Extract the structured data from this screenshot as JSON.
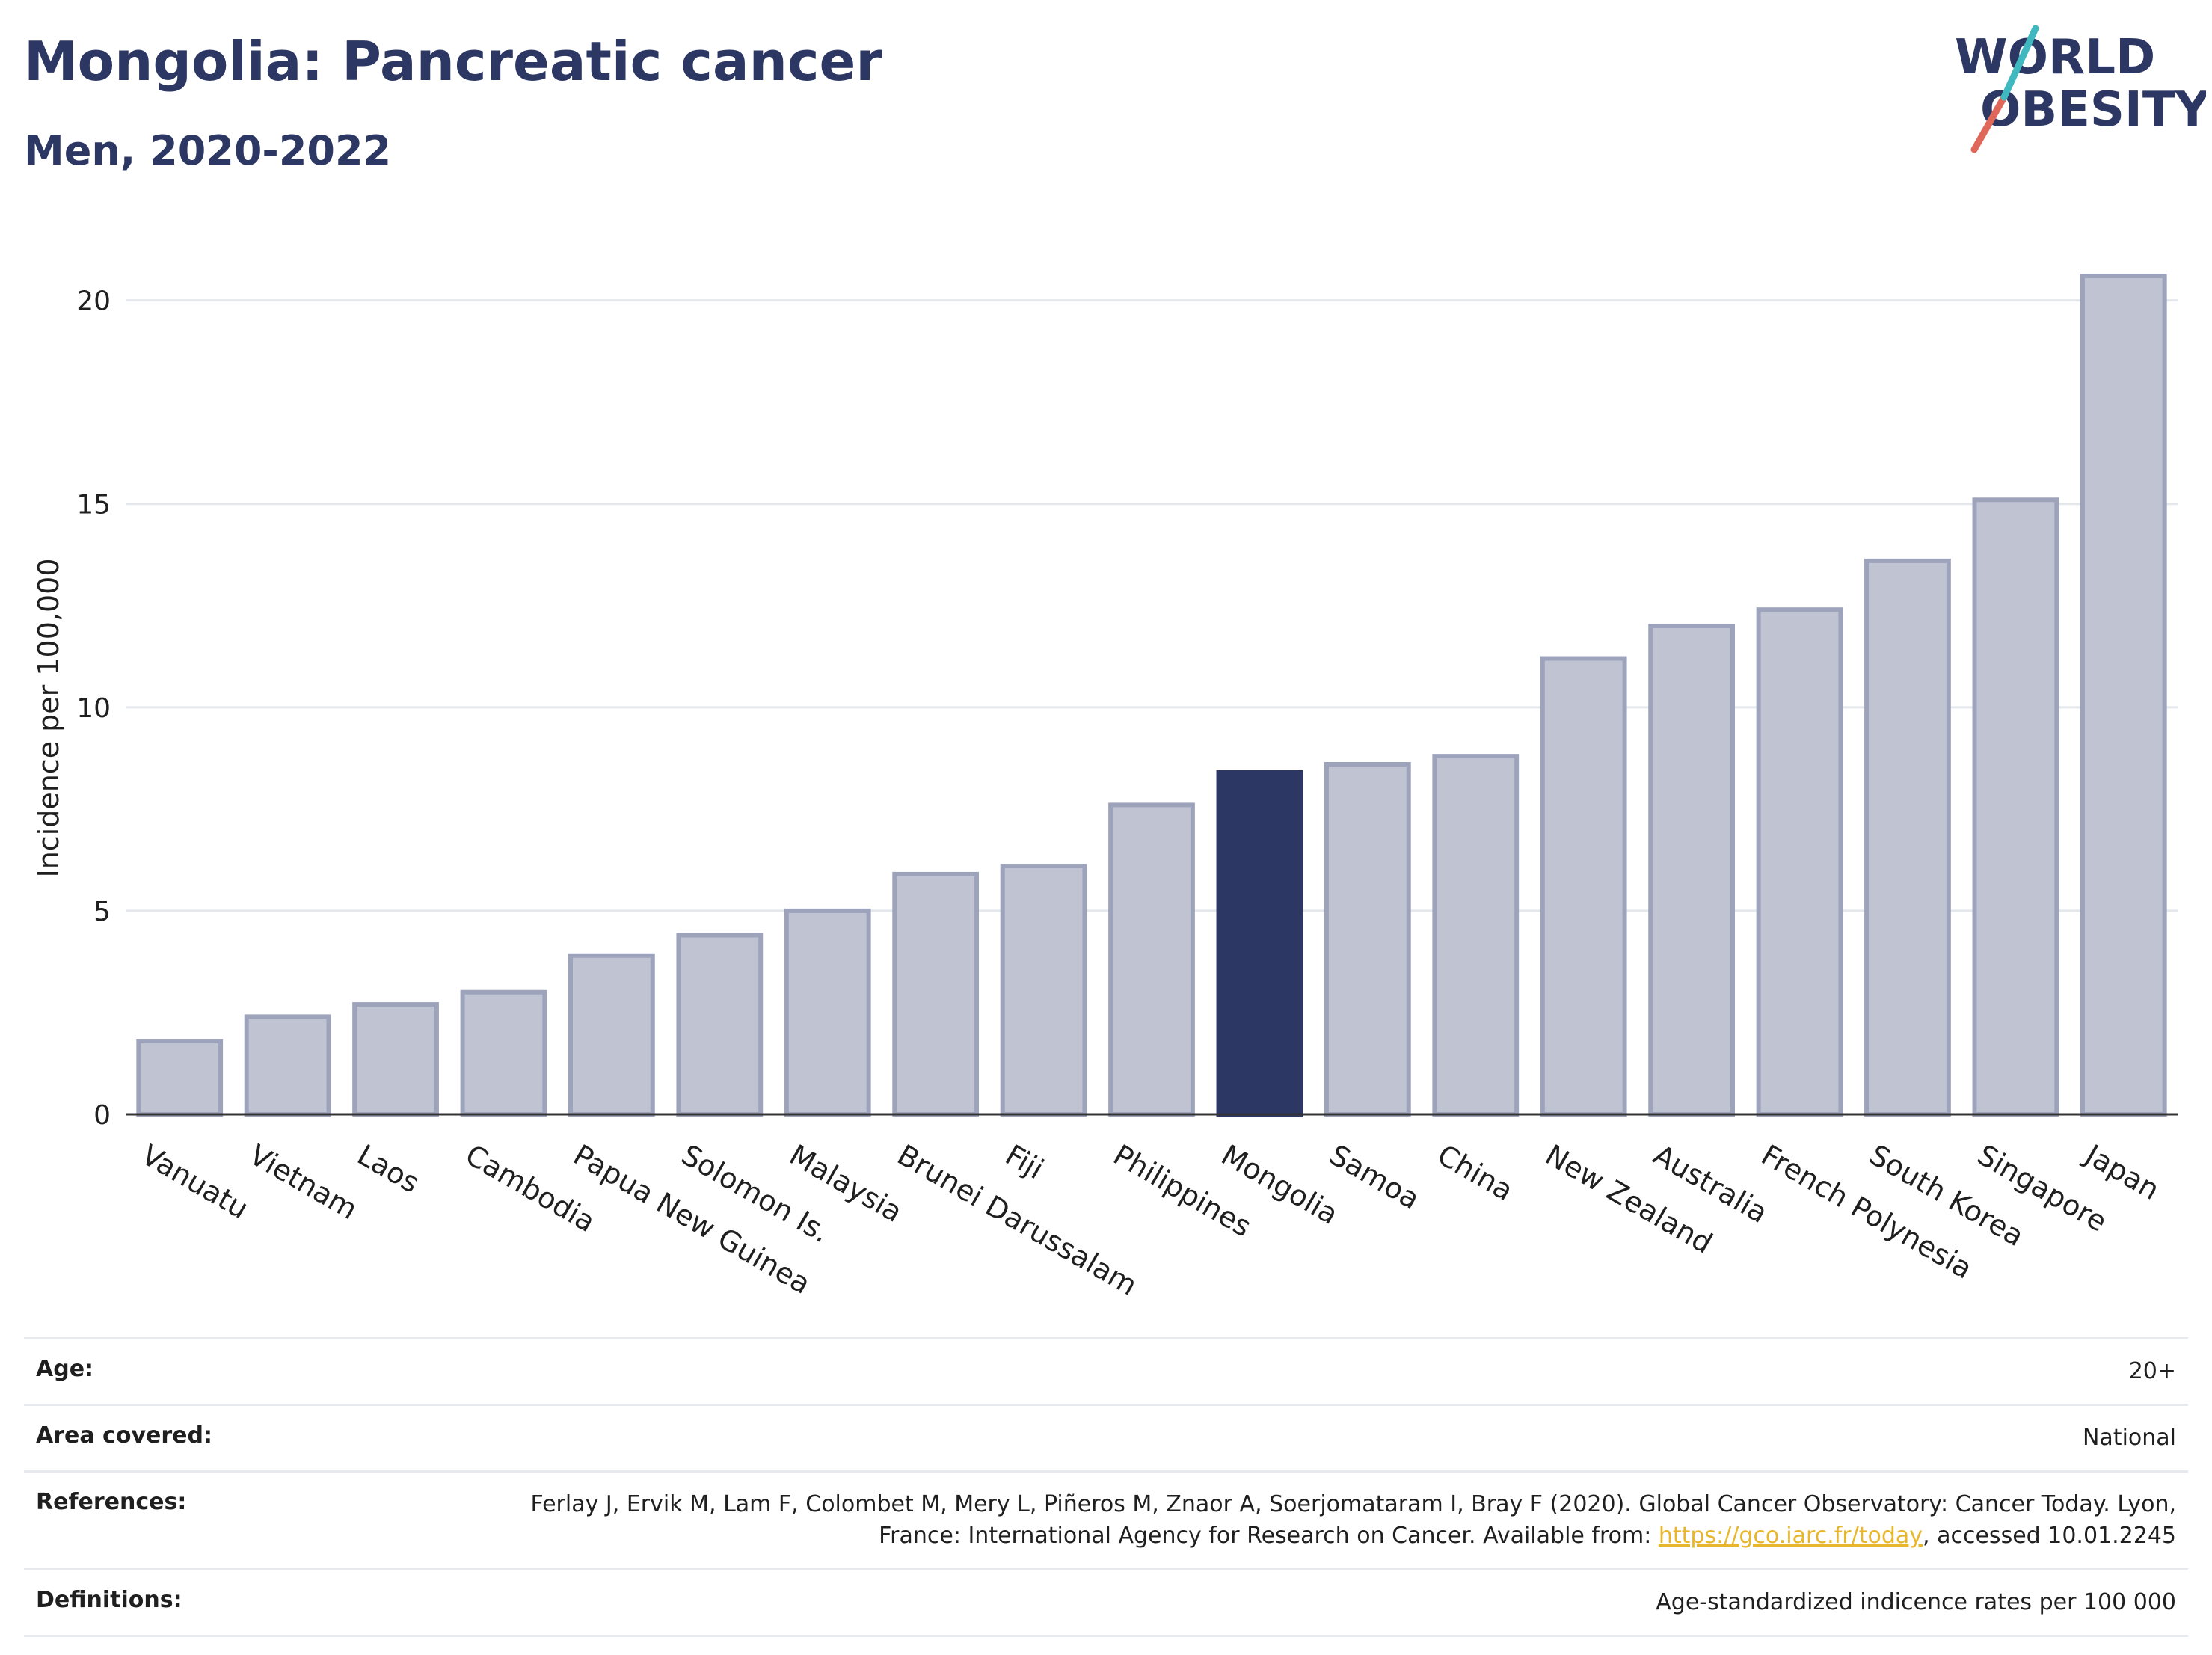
{
  "header": {
    "title": "Mongolia: Pancreatic cancer",
    "subtitle": "Men, 2020-2022"
  },
  "logo": {
    "line1": "WORLD",
    "line2": "OBESITY",
    "text_color": "#2c3863",
    "accent_teal": "#3fb8c0",
    "accent_red": "#e0685a"
  },
  "chart_data": {
    "type": "bar",
    "title": "",
    "xlabel": "",
    "ylabel": "Incidence per 100,000",
    "ylim": [
      0,
      21.5
    ],
    "yticks": [
      0,
      5,
      10,
      15,
      20
    ],
    "grid": true,
    "highlight": "Mongolia",
    "colors": {
      "bar": "#c0c4d2",
      "bar_edge": "#9ea3bc",
      "highlight": "#2c3863"
    },
    "categories": [
      "Vanuatu",
      "Vietnam",
      "Laos",
      "Cambodia",
      "Papua New Guinea",
      "Solomon Is.",
      "Malaysia",
      "Brunei Darussalam",
      "Fiji",
      "Philippines",
      "Mongolia",
      "Samoa",
      "China",
      "New Zealand",
      "Australia",
      "French Polynesia",
      "South Korea",
      "Singapore",
      "Japan"
    ],
    "values": [
      1.8,
      2.4,
      2.7,
      3.0,
      3.9,
      4.4,
      5.0,
      5.9,
      6.1,
      7.6,
      8.4,
      8.6,
      8.8,
      11.2,
      12.0,
      12.4,
      13.6,
      15.1,
      20.6
    ]
  },
  "meta": [
    {
      "key": "Age:",
      "value": "20+"
    },
    {
      "key": "Area covered:",
      "value": "National"
    },
    {
      "key": "References:",
      "value_pre": "Ferlay J, Ervik M, Lam F, Colombet M, Mery L, Piñeros M, Znaor A, Soerjomataram I, Bray F (2020). Global Cancer Observatory: Cancer Today. Lyon, France: International Agency for Research on Cancer. Available from: ",
      "link": "https://gco.iarc.fr/today",
      "value_post": ", accessed 10.01.2245"
    },
    {
      "key": "Definitions:",
      "value": "Age-standardized indicence rates per 100 000"
    }
  ]
}
